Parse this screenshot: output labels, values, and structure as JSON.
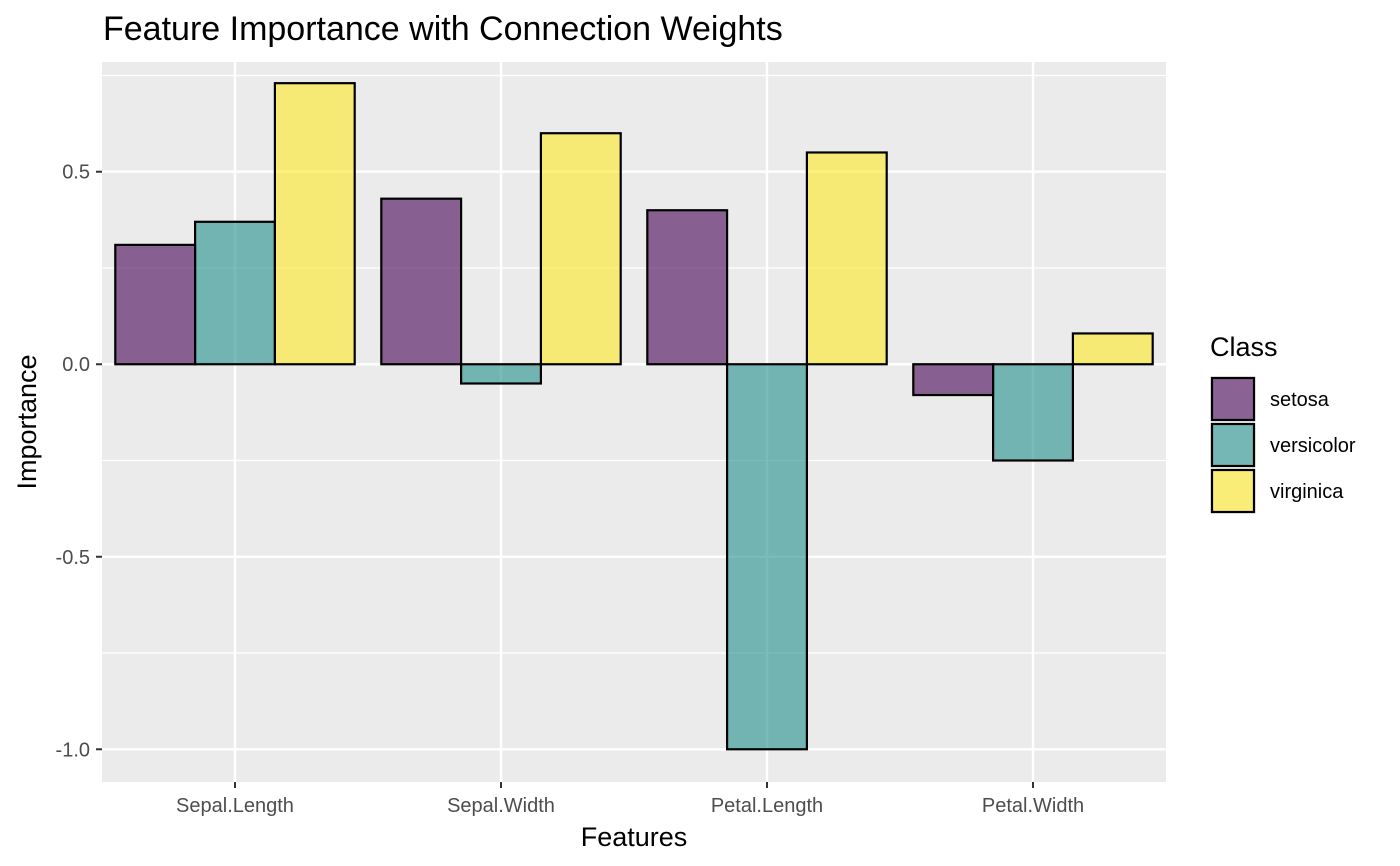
{
  "chart_data": {
    "type": "bar",
    "title": "Feature Importance with Connection Weights",
    "xlabel": "Features",
    "ylabel": "Importance",
    "categories": [
      "Sepal.Length",
      "Sepal.Width",
      "Petal.Length",
      "Petal.Width"
    ],
    "series": [
      {
        "name": "setosa",
        "color": "#440154",
        "values": [
          0.31,
          0.43,
          0.4,
          -0.08
        ]
      },
      {
        "name": "versicolor",
        "color": "#21908C",
        "values": [
          0.37,
          -0.05,
          -1.0,
          -0.25
        ]
      },
      {
        "name": "virginica",
        "color": "#FDE725",
        "values": [
          0.73,
          0.6,
          0.55,
          0.08
        ]
      }
    ],
    "ylim": [
      -1.085,
      0.785
    ],
    "yticks": [
      -1.0,
      -0.5,
      0.0,
      0.5
    ],
    "ytick_labels": [
      "-1.0",
      "-0.5",
      "0.0",
      "0.5"
    ],
    "legend": {
      "title": "Class",
      "placement": "right"
    },
    "grid": true,
    "panel_background": "#EBEBEB",
    "bar_outline": "#000000",
    "bar_alpha": 0.6
  }
}
